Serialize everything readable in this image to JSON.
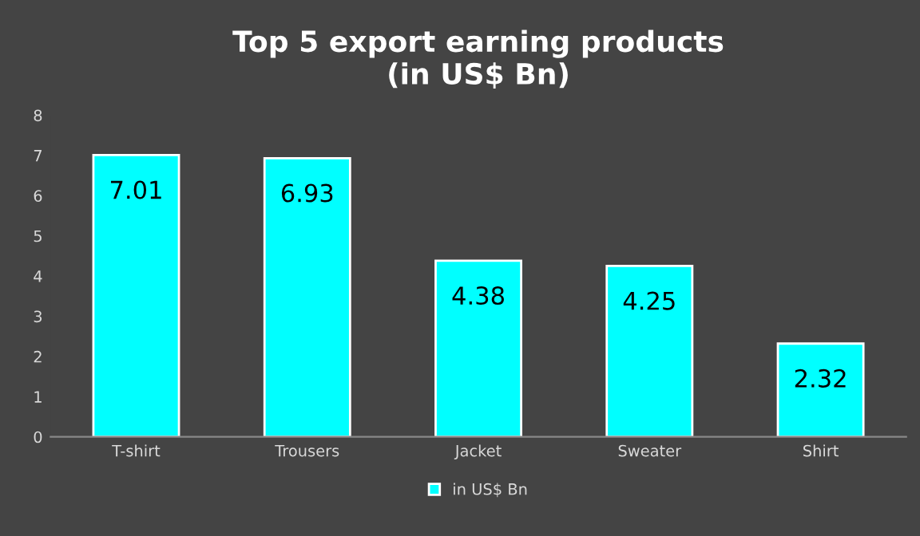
{
  "chart_data": {
    "type": "bar",
    "title": "Top 5 export earning products\n(in US$ Bn)",
    "categories": [
      "T-shirt",
      "Trousers",
      "Jacket",
      "Sweater",
      "Shirt"
    ],
    "series": [
      {
        "name": "in US$ Bn",
        "color": "#00ffff",
        "values": [
          7.01,
          6.93,
          4.38,
          4.25,
          2.32
        ]
      }
    ],
    "ylim": [
      0,
      8
    ],
    "yticks": [
      0,
      1,
      2,
      3,
      4,
      5,
      6,
      7,
      8
    ],
    "grid": false,
    "legend": "bottom",
    "data_labels": true
  }
}
